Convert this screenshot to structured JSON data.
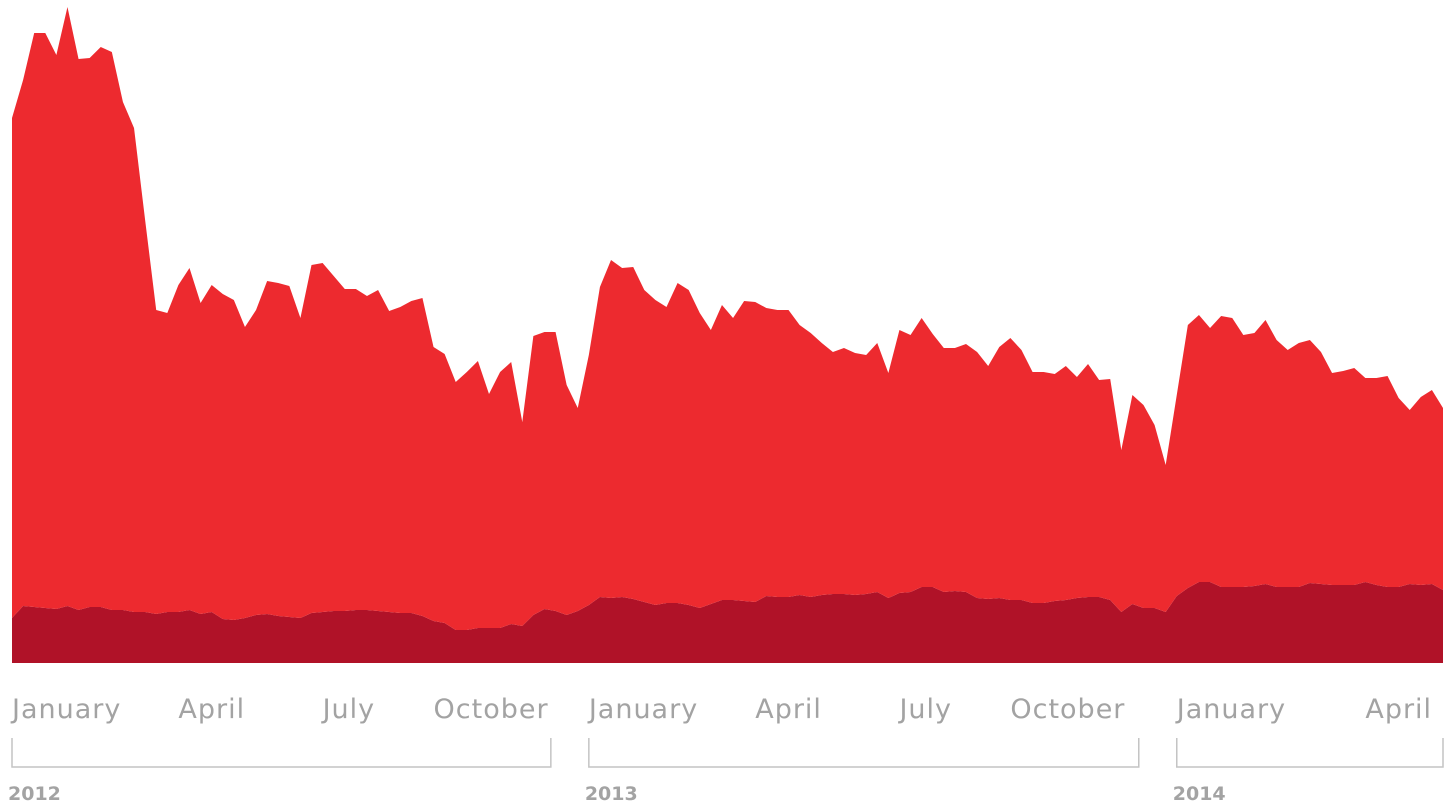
{
  "chart_data": {
    "type": "area",
    "stacked": true,
    "categories": [
      "January",
      null,
      null,
      null,
      null,
      null,
      null,
      null,
      null,
      null,
      null,
      null,
      null,
      null,
      null,
      "April",
      null,
      null,
      null,
      null,
      null,
      null,
      null,
      null,
      null,
      null,
      null,
      null,
      "July",
      null,
      null,
      null,
      null,
      null,
      null,
      null,
      null,
      null,
      "October",
      null,
      null,
      null,
      null,
      null,
      null,
      null,
      null,
      null,
      null,
      null,
      null,
      null,
      "January",
      null,
      null,
      null,
      null,
      null,
      null,
      null,
      null,
      null,
      null,
      null,
      null,
      null,
      null,
      "April",
      null,
      null,
      null,
      null,
      null,
      null,
      null,
      null,
      null,
      null,
      null,
      null,
      "July",
      null,
      null,
      null,
      null,
      null,
      null,
      null,
      null,
      null,
      "October",
      null,
      null,
      null,
      null,
      null,
      null,
      null,
      null,
      null,
      null,
      null,
      null,
      null,
      null,
      "January",
      null,
      null,
      null,
      null,
      null,
      null,
      null,
      null,
      null,
      null,
      null,
      null,
      null,
      null,
      null,
      null,
      "April",
      null,
      null,
      null,
      null,
      null,
      null,
      null
    ],
    "years": [
      "2012",
      "2013",
      "2014"
    ],
    "series": [
      {
        "color": "#b01228",
        "values": [
          45,
          57,
          56,
          55,
          54,
          57,
          53,
          56,
          56,
          53,
          53,
          51,
          51,
          49,
          51,
          51,
          53,
          49,
          51,
          44,
          43,
          45,
          48,
          49,
          47,
          46,
          45,
          50,
          51,
          52,
          52,
          53,
          53,
          52,
          51,
          50,
          50,
          47,
          42,
          40,
          33,
          33,
          35,
          35,
          35,
          39,
          37,
          48,
          54,
          52,
          48,
          52,
          58,
          66,
          65,
          66,
          64,
          61,
          58,
          60,
          60,
          58,
          55,
          59,
          63,
          63,
          62,
          61,
          67,
          66,
          66,
          68,
          66,
          68,
          69,
          69,
          68,
          69,
          71,
          65,
          70,
          71,
          76,
          76,
          71,
          72,
          71,
          65,
          64,
          65,
          63,
          63,
          60,
          60,
          62,
          63,
          65,
          66,
          66,
          63,
          51,
          59,
          55,
          55,
          51,
          67,
          75,
          81,
          81,
          76,
          76,
          76,
          77,
          79,
          76,
          76,
          76,
          80,
          79,
          78,
          78,
          78,
          81,
          78,
          76,
          76,
          79,
          78,
          79,
          73
        ]
      },
      {
        "color": "#ed2a2f",
        "values": [
          500,
          526,
          574,
          575,
          554,
          599,
          551,
          549,
          560,
          558,
          508,
          484,
          392,
          304,
          299,
          327,
          342,
          311,
          327,
          325,
          320,
          291,
          305,
          333,
          333,
          331,
          300,
          348,
          349,
          335,
          322,
          321,
          314,
          321,
          301,
          306,
          312,
          318,
          274,
          269,
          248,
          258,
          267,
          234,
          256,
          262,
          204,
          279,
          277,
          279,
          230,
          203,
          250,
          310,
          338,
          329,
          332,
          312,
          305,
          296,
          320,
          315,
          295,
          274,
          295,
          282,
          300,
          300,
          288,
          287,
          287,
          270,
          264,
          252,
          242,
          246,
          242,
          239,
          249,
          225,
          263,
          257,
          269,
          253,
          244,
          243,
          248,
          246,
          233,
          251,
          262,
          250,
          231,
          231,
          227,
          234,
          221,
          233,
          217,
          221,
          162,
          209,
          203,
          183,
          147,
          201,
          263,
          267,
          254,
          271,
          269,
          252,
          253,
          264,
          247,
          237,
          244,
          243,
          232,
          212,
          214,
          217,
          204,
          207,
          211,
          189,
          174,
          188,
          194,
          182
        ]
      }
    ],
    "ylim": [
      0,
      660
    ]
  }
}
